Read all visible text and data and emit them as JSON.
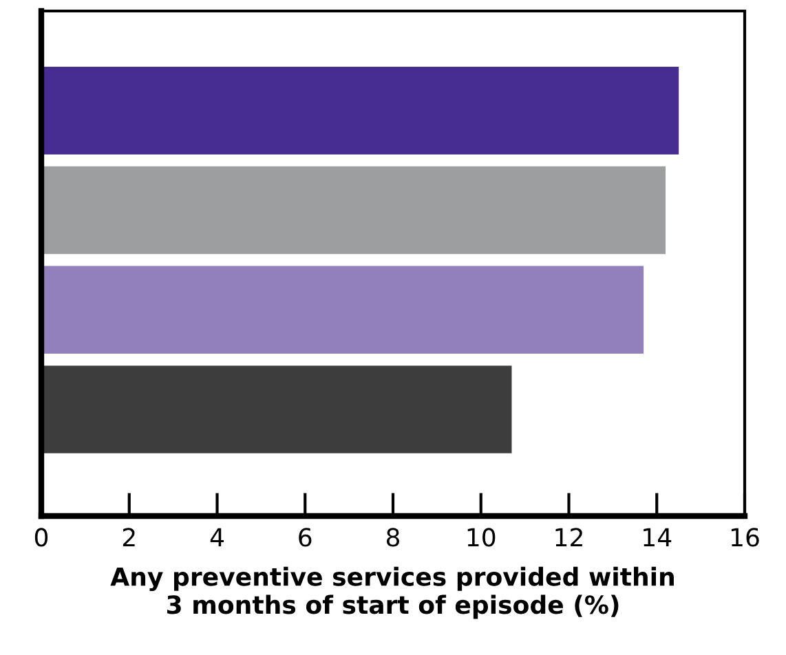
{
  "chart_data": {
    "type": "bar",
    "orientation": "horizontal",
    "xlabel": "Any preventive services provided within\n3 months of start of episode (%)",
    "categories": [
      null,
      null,
      null,
      null
    ],
    "values": [
      14.5,
      14.2,
      13.7,
      10.7
    ],
    "colors": [
      "#472c91",
      "#9c9e9f",
      "#9280bd",
      "#3d3d3d"
    ],
    "xlim": [
      0,
      16
    ],
    "xticks": [
      0,
      2,
      4,
      6,
      8,
      10,
      12,
      14,
      16
    ],
    "grid": false,
    "legend": false
  }
}
